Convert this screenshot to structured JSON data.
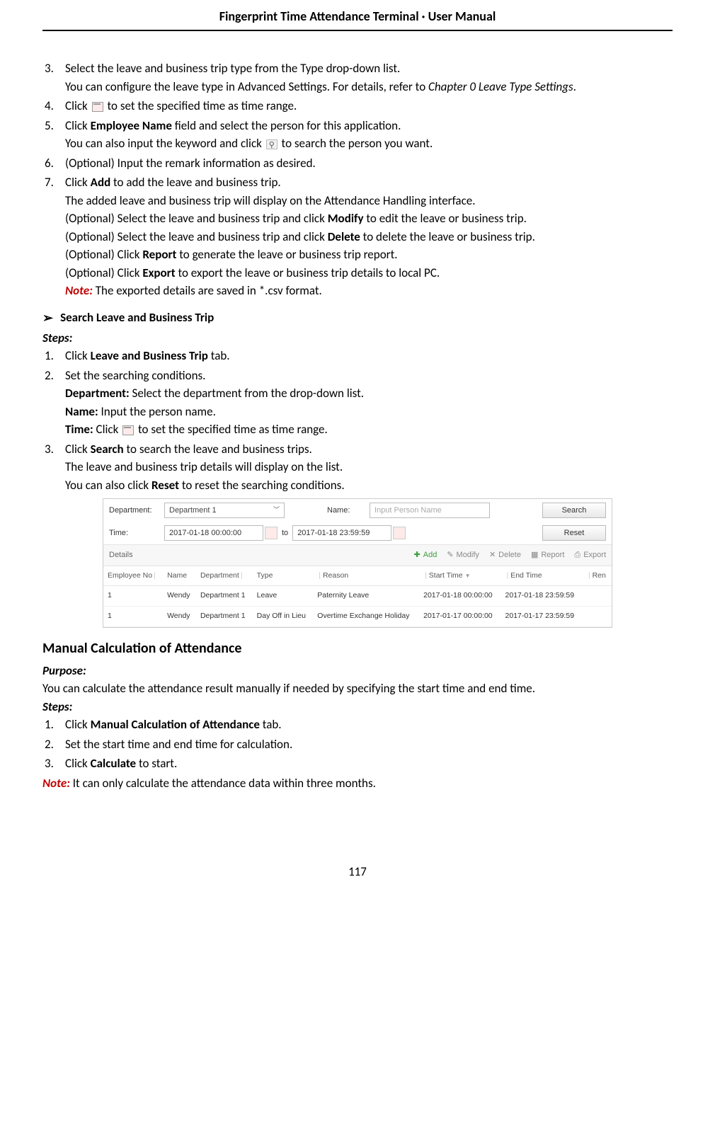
{
  "header": "Fingerprint Time Attendance Terminal · User Manual",
  "page_number": "117",
  "steps_part1": {
    "s3_a": "Select the leave and business trip type from the Type drop-down list.",
    "s3_b_prefix": "You can configure the leave type in Advanced Settings. For details, refer to ",
    "s3_b_italic": "Chapter 0 Leave Type Settings",
    "s3_b_suffix": ".",
    "s4_a": "Click ",
    "s4_b": " to set the specified time as time range.",
    "s5_a": "Click ",
    "s5_bold": "Employee Name",
    "s5_b": " field and select the person for this application.",
    "s5_line2_a": "You can also input the keyword and click ",
    "s5_line2_b": " to search the person you want.",
    "s6": "(Optional) Input the remark information as desired.",
    "s7_a": "Click ",
    "s7_bold": "Add",
    "s7_b": " to add the leave and business trip.",
    "s7_line2": "The added leave and business trip will display on the Attendance Handling interface.",
    "s7_line3_a": "(Optional) Select the leave and business trip and click ",
    "s7_line3_bold": "Modify",
    "s7_line3_b": " to edit the leave or business trip.",
    "s7_line4_a": "(Optional) Select the leave and business trip and click ",
    "s7_line4_bold": "Delete",
    "s7_line4_b": " to delete the leave or business trip.",
    "s7_line5_a": "(Optional) Click ",
    "s7_line5_bold": "Report",
    "s7_line5_b": " to generate the leave or business trip report.",
    "s7_line6_a": "(Optional) Click ",
    "s7_line6_bold": "Export",
    "s7_line6_b": " to export the leave or business trip details to local PC.",
    "note_label": "Note:",
    "note_text": " The exported details are saved in *.csv format."
  },
  "search_section": {
    "heading": "Search Leave and Business Trip",
    "steps_label": "Steps:",
    "s1_a": "Click ",
    "s1_bold": "Leave and Business Trip",
    "s1_b": " tab.",
    "s2": "Set the searching conditions.",
    "dept_label": "Department:",
    "dept_text": " Select the department from the drop-down list.",
    "name_label": "Name:",
    "name_text": " Input the person name.",
    "time_label": "Time:",
    "time_text_a": " Click ",
    "time_text_b": " to set the specified time as time range.",
    "s3_a": "Click ",
    "s3_bold": "Search",
    "s3_b": " to search the leave and business trips.",
    "s3_line2": "The leave and business trip details will display on the list.",
    "s3_line3_a": "You can also click ",
    "s3_line3_bold": "Reset",
    "s3_line3_b": " to reset the searching conditions."
  },
  "figure": {
    "dept_label": "Department:",
    "dept_value": "Department 1",
    "name_label": "Name:",
    "name_placeholder": "Input Person Name",
    "search_btn": "Search",
    "time_label": "Time:",
    "time_from": "2017-01-18 00:00:00",
    "to": "to",
    "time_to": "2017-01-18 23:59:59",
    "reset_btn": "Reset",
    "details": "Details",
    "add": "Add",
    "modify": "Modify",
    "delete": "Delete",
    "report": "Report",
    "export": "Export",
    "cols": {
      "c1": "Employee No",
      "c2": "Name",
      "c3": "Department",
      "c4": "Type",
      "c5": "Reason",
      "c6": "Start Time",
      "c7": "End Time",
      "c8": "Ren"
    },
    "rows": [
      {
        "no": "1",
        "name": "Wendy",
        "dept": "Department 1",
        "type": "Leave",
        "reason": "Paternity Leave",
        "start": "2017-01-18 00:00:00",
        "end": "2017-01-18 23:59:59"
      },
      {
        "no": "1",
        "name": "Wendy",
        "dept": "Department 1",
        "type": "Day Off in Lieu",
        "reason": "Overtime Exchange Holiday",
        "start": "2017-01-17 00:00:00",
        "end": "2017-01-17 23:59:59"
      }
    ]
  },
  "manual_calc": {
    "heading": "Manual Calculation of Attendance",
    "purpose_label": "Purpose:",
    "purpose_text": "You can calculate the attendance result manually if needed by specifying the start time and end time.",
    "steps_label": "Steps:",
    "s1_a": "Click ",
    "s1_bold": "Manual Calculation of Attendance",
    "s1_b": " tab.",
    "s2": "Set the start time and end time for calculation.",
    "s3_a": "Click ",
    "s3_bold": "Calculate",
    "s3_b": " to start.",
    "note_label": "Note:",
    "note_text": " It can only calculate the attendance data within three months."
  }
}
